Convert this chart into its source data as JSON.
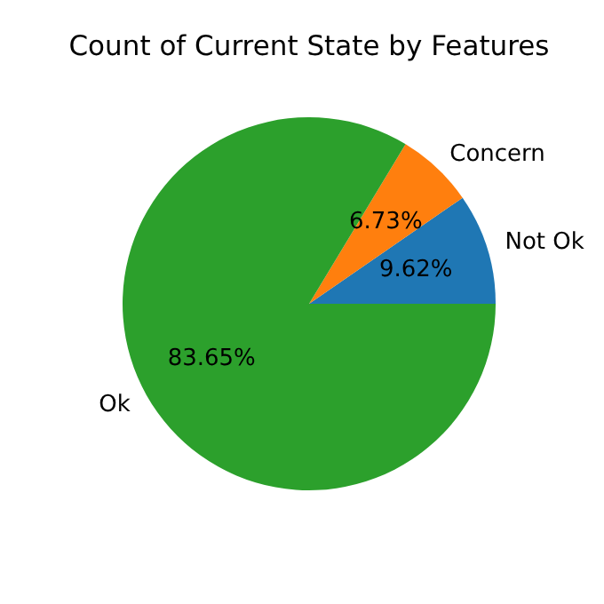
{
  "chart_data": {
    "type": "pie",
    "title": "Count of Current State by Features",
    "categories": [
      "Not Ok",
      "Concern",
      "Ok"
    ],
    "values": [
      9.62,
      6.73,
      83.65
    ],
    "colors": [
      "#1f77b4",
      "#ff7f0e",
      "#2ca02c"
    ],
    "value_labels": [
      "9.62%",
      "6.73%",
      "83.65%"
    ]
  }
}
